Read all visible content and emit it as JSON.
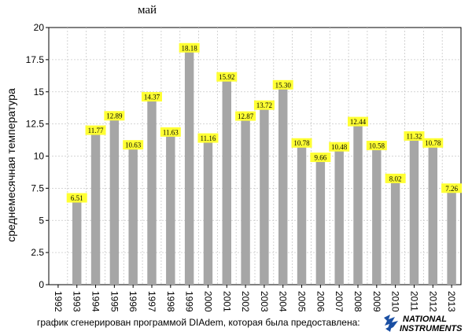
{
  "chart_data": {
    "type": "bar",
    "title": "май",
    "xlabel": "",
    "ylabel": "среднемесячная температура",
    "ylim": [
      0,
      20
    ],
    "yticks": [
      "0",
      "2.5",
      "5",
      "7.5",
      "10",
      "12.5",
      "15",
      "17.5",
      "20"
    ],
    "grid": true,
    "x_ticks": [
      "1992",
      "1993",
      "1994",
      "1995",
      "1996",
      "1997",
      "1998",
      "1999",
      "2000",
      "2001",
      "2002",
      "2003",
      "2004",
      "2005",
      "2006",
      "2007",
      "2008",
      "2009",
      "2010",
      "2011",
      "2012",
      "2013"
    ],
    "categories": [
      "1993",
      "1994",
      "1995",
      "1996",
      "1997",
      "1998",
      "1999",
      "2000",
      "2001",
      "2002",
      "2003",
      "2004",
      "2005",
      "2006",
      "2007",
      "2008",
      "2009",
      "2010",
      "2011",
      "2012",
      "2013"
    ],
    "values": [
      6.51,
      11.77,
      12.89,
      10.63,
      14.37,
      11.63,
      18.18,
      11.16,
      15.92,
      12.87,
      13.72,
      15.3,
      10.78,
      9.66,
      10.48,
      12.44,
      10.58,
      8.02,
      11.32,
      10.78,
      7.26
    ],
    "data_labels": [
      "6.51",
      "11.77",
      "12.89",
      "10.63",
      "14.37",
      "11.63",
      "18.18",
      "11.16",
      "15.92",
      "12.87",
      "13.72",
      "15.30",
      "10.78",
      "9.66",
      "10.48",
      "12.44",
      "10.58",
      "8.02",
      "11.32",
      "10.78",
      "7.26"
    ],
    "bar_color": "#a6a6a6",
    "label_bg_color": "#ffff33"
  },
  "footer": {
    "note": "график сгенерирован программой DIAdem, которая была  предоставлена:",
    "logo_line1": "NATIONAL",
    "logo_line2": "INSTRUMENTS"
  }
}
